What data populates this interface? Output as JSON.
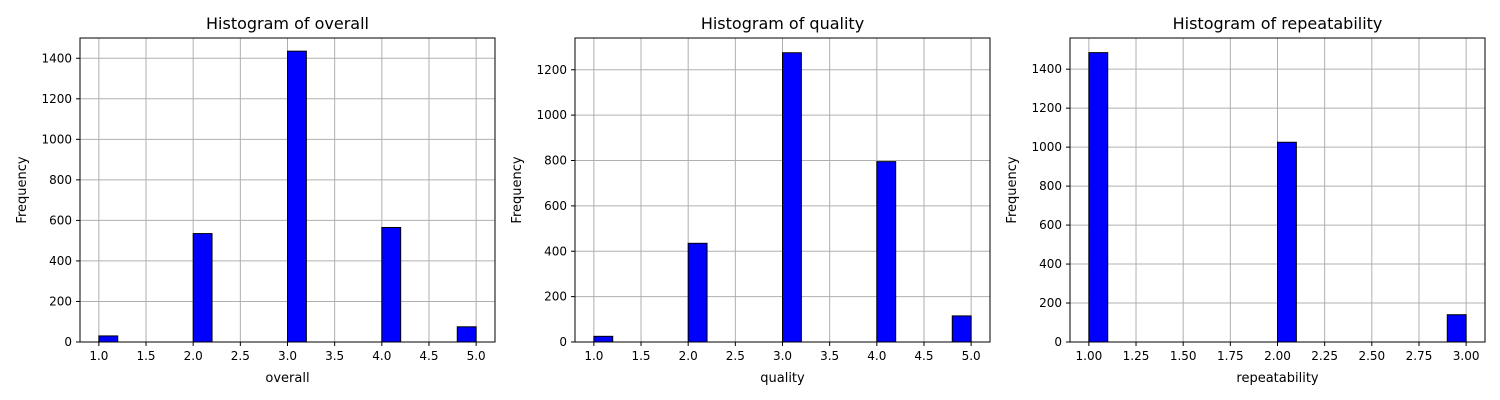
{
  "colors": {
    "bar_fill": "#0000ff",
    "bar_edge": "#000000",
    "grid": "#b0b0b0"
  },
  "chart_data": [
    {
      "type": "bar",
      "title": "Histogram of overall",
      "xlabel": "overall",
      "ylabel": "Frequency",
      "xlim": [
        0.8,
        5.2
      ],
      "ylim": [
        0,
        1500
      ],
      "xticks": [
        1.0,
        1.5,
        2.0,
        2.5,
        3.0,
        3.5,
        4.0,
        4.5,
        5.0
      ],
      "xtick_labels": [
        "1.0",
        "1.5",
        "2.0",
        "2.5",
        "3.0",
        "3.5",
        "4.0",
        "4.5",
        "5.0"
      ],
      "yticks": [
        0,
        200,
        400,
        600,
        800,
        1000,
        1200,
        1400
      ],
      "ytick_labels": [
        "0",
        "200",
        "400",
        "600",
        "800",
        "1000",
        "1200",
        "1400"
      ],
      "grid": true,
      "bins": [
        {
          "x0": 1.0,
          "x1": 1.2,
          "value": 30
        },
        {
          "x0": 2.0,
          "x1": 2.2,
          "value": 535
        },
        {
          "x0": 3.0,
          "x1": 3.2,
          "value": 1435
        },
        {
          "x0": 4.0,
          "x1": 4.2,
          "value": 565
        },
        {
          "x0": 4.8,
          "x1": 5.0,
          "value": 75
        }
      ]
    },
    {
      "type": "bar",
      "title": "Histogram of quality",
      "xlabel": "quality",
      "ylabel": "Frequency",
      "xlim": [
        0.8,
        5.2
      ],
      "ylim": [
        0,
        1340
      ],
      "xticks": [
        1.0,
        1.5,
        2.0,
        2.5,
        3.0,
        3.5,
        4.0,
        4.5,
        5.0
      ],
      "xtick_labels": [
        "1.0",
        "1.5",
        "2.0",
        "2.5",
        "3.0",
        "3.5",
        "4.0",
        "4.5",
        "5.0"
      ],
      "yticks": [
        0,
        200,
        400,
        600,
        800,
        1000,
        1200
      ],
      "ytick_labels": [
        "0",
        "200",
        "400",
        "600",
        "800",
        "1000",
        "1200"
      ],
      "grid": true,
      "bins": [
        {
          "x0": 1.0,
          "x1": 1.2,
          "value": 25
        },
        {
          "x0": 2.0,
          "x1": 2.2,
          "value": 435
        },
        {
          "x0": 3.0,
          "x1": 3.2,
          "value": 1275
        },
        {
          "x0": 4.0,
          "x1": 4.2,
          "value": 795
        },
        {
          "x0": 4.8,
          "x1": 5.0,
          "value": 115
        }
      ]
    },
    {
      "type": "bar",
      "title": "Histogram of repeatability",
      "xlabel": "repeatability",
      "ylabel": "Frequency",
      "xlim": [
        0.9,
        3.1
      ],
      "ylim": [
        0,
        1560
      ],
      "xticks": [
        1.0,
        1.25,
        1.5,
        1.75,
        2.0,
        2.25,
        2.5,
        2.75,
        3.0
      ],
      "xtick_labels": [
        "1.00",
        "1.25",
        "1.50",
        "1.75",
        "2.00",
        "2.25",
        "2.50",
        "2.75",
        "3.00"
      ],
      "yticks": [
        0,
        200,
        400,
        600,
        800,
        1000,
        1200,
        1400
      ],
      "ytick_labels": [
        "0",
        "200",
        "400",
        "600",
        "800",
        "1000",
        "1200",
        "1400"
      ],
      "grid": true,
      "bins": [
        {
          "x0": 1.0,
          "x1": 1.1,
          "value": 1485
        },
        {
          "x0": 2.0,
          "x1": 2.1,
          "value": 1025
        },
        {
          "x0": 2.9,
          "x1": 3.0,
          "value": 140
        }
      ]
    }
  ]
}
